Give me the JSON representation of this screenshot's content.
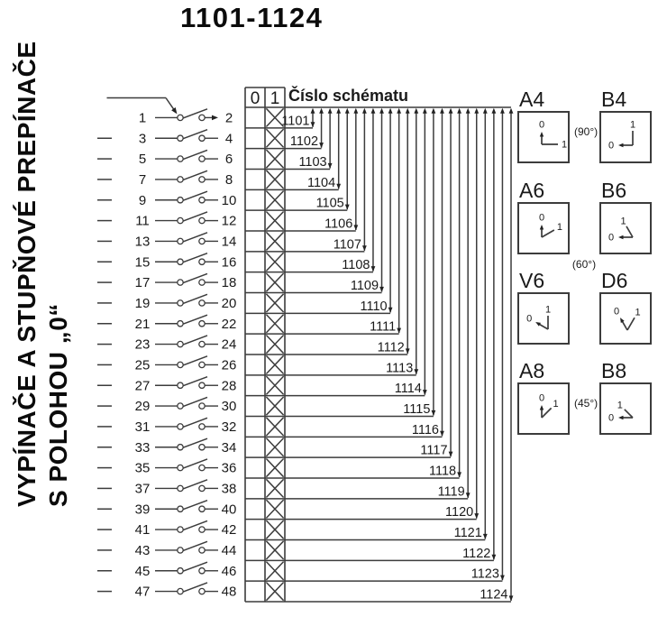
{
  "page_title": "1101-1124",
  "side_title": {
    "line1": "VYPÍNAČE A STUPŇOVÉ PREPÍNAČE",
    "line2": "S POLOHOU „0“"
  },
  "table": {
    "col0": "0",
    "col1": "1",
    "header_label": "Číslo schématu",
    "rows": [
      {
        "left": "1",
        "right": "2",
        "pos0": "",
        "pos1": "X",
        "schema": "1101"
      },
      {
        "left": "3",
        "right": "4",
        "pos0": "",
        "pos1": "X",
        "schema": "1102"
      },
      {
        "left": "5",
        "right": "6",
        "pos0": "",
        "pos1": "X",
        "schema": "1103"
      },
      {
        "left": "7",
        "right": "8",
        "pos0": "",
        "pos1": "X",
        "schema": "1104"
      },
      {
        "left": "9",
        "right": "10",
        "pos0": "",
        "pos1": "X",
        "schema": "1105"
      },
      {
        "left": "11",
        "right": "12",
        "pos0": "",
        "pos1": "X",
        "schema": "1106"
      },
      {
        "left": "13",
        "right": "14",
        "pos0": "",
        "pos1": "X",
        "schema": "1107"
      },
      {
        "left": "15",
        "right": "16",
        "pos0": "",
        "pos1": "X",
        "schema": "1108"
      },
      {
        "left": "17",
        "right": "18",
        "pos0": "",
        "pos1": "X",
        "schema": "1109"
      },
      {
        "left": "19",
        "right": "20",
        "pos0": "",
        "pos1": "X",
        "schema": "1110"
      },
      {
        "left": "21",
        "right": "22",
        "pos0": "",
        "pos1": "X",
        "schema": "1111"
      },
      {
        "left": "23",
        "right": "24",
        "pos0": "",
        "pos1": "X",
        "schema": "1112"
      },
      {
        "left": "25",
        "right": "26",
        "pos0": "",
        "pos1": "X",
        "schema": "1113"
      },
      {
        "left": "27",
        "right": "28",
        "pos0": "",
        "pos1": "X",
        "schema": "1114"
      },
      {
        "left": "29",
        "right": "30",
        "pos0": "",
        "pos1": "X",
        "schema": "1115"
      },
      {
        "left": "31",
        "right": "32",
        "pos0": "",
        "pos1": "X",
        "schema": "1116"
      },
      {
        "left": "33",
        "right": "34",
        "pos0": "",
        "pos1": "X",
        "schema": "1117"
      },
      {
        "left": "35",
        "right": "36",
        "pos0": "",
        "pos1": "X",
        "schema": "1118"
      },
      {
        "left": "37",
        "right": "38",
        "pos0": "",
        "pos1": "X",
        "schema": "1119"
      },
      {
        "left": "39",
        "right": "40",
        "pos0": "",
        "pos1": "X",
        "schema": "1120"
      },
      {
        "left": "41",
        "right": "42",
        "pos0": "",
        "pos1": "X",
        "schema": "1121"
      },
      {
        "left": "43",
        "right": "44",
        "pos0": "",
        "pos1": "X",
        "schema": "1122"
      },
      {
        "left": "45",
        "right": "46",
        "pos0": "",
        "pos1": "X",
        "schema": "1123"
      },
      {
        "left": "47",
        "right": "48",
        "pos0": "",
        "pos1": "X",
        "schema": "1124"
      }
    ]
  },
  "position_boxes": [
    {
      "label": "A4",
      "zero": "0",
      "one": "1",
      "arrow_deg": 90,
      "line_deg": 0,
      "note": "(90°)",
      "note_pos": "right"
    },
    {
      "label": "B4",
      "zero": "0",
      "one": "1",
      "arrow_deg": 180,
      "line_deg": 90
    },
    {
      "label": "A6",
      "zero": "0",
      "one": "1",
      "arrow_deg": 90,
      "line_deg": 30,
      "note": "(60°)",
      "note_pos": "below"
    },
    {
      "label": "B6",
      "zero": "0",
      "one": "1",
      "arrow_deg": 180,
      "line_deg": 120
    },
    {
      "label": "V6",
      "zero": "0",
      "one": "1",
      "arrow_deg": 150,
      "line_deg": 90
    },
    {
      "label": "D6",
      "zero": "0",
      "one": "1",
      "arrow_deg": 120,
      "line_deg": 60
    },
    {
      "label": "A8",
      "zero": "0",
      "one": "1",
      "arrow_deg": 90,
      "line_deg": 45,
      "note": "(45°)",
      "note_pos": "right"
    },
    {
      "label": "B8",
      "zero": "0",
      "one": "1",
      "arrow_deg": 180,
      "line_deg": 135
    }
  ]
}
